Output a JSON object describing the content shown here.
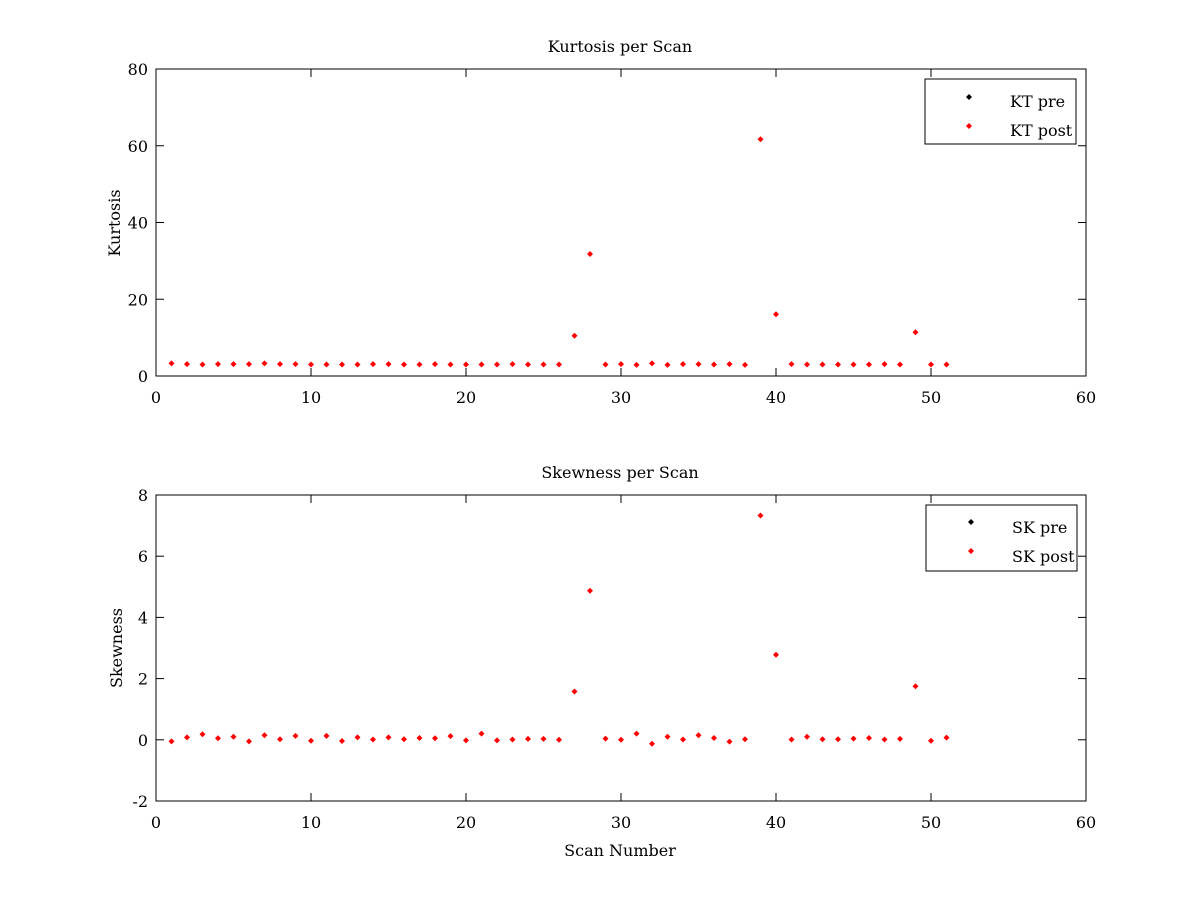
{
  "colors": {
    "pre": "#000000",
    "post": "#ff0000",
    "background": "#ffffff",
    "axes": "#000000"
  },
  "chart_data": [
    {
      "type": "scatter",
      "title": "Kurtosis per Scan",
      "xlabel": "",
      "ylabel": "Kurtosis",
      "xlim": [
        0,
        60
      ],
      "ylim": [
        0,
        80
      ],
      "xticks": [
        0,
        10,
        20,
        30,
        40,
        50,
        60
      ],
      "yticks": [
        0,
        20,
        40,
        60,
        80
      ],
      "grid": false,
      "legend_position": "top-right",
      "series": [
        {
          "name": "KT pre",
          "color": "#000000",
          "x": [],
          "y": []
        },
        {
          "name": "KT post",
          "color": "#ff0000",
          "x": [
            1,
            2,
            3,
            4,
            5,
            6,
            7,
            8,
            9,
            10,
            11,
            12,
            13,
            14,
            15,
            16,
            17,
            18,
            19,
            20,
            21,
            22,
            23,
            24,
            25,
            26,
            27,
            28,
            29,
            30,
            31,
            32,
            33,
            34,
            35,
            36,
            37,
            38,
            39,
            40,
            41,
            42,
            43,
            44,
            45,
            46,
            47,
            48,
            49,
            50,
            51
          ],
          "y": [
            3.3,
            3.1,
            3.0,
            3.1,
            3.1,
            3.1,
            3.3,
            3.1,
            3.1,
            3.0,
            3.0,
            3.0,
            3.0,
            3.1,
            3.1,
            3.0,
            3.0,
            3.1,
            3.0,
            3.0,
            3.0,
            3.0,
            3.1,
            3.0,
            3.0,
            3.0,
            10.5,
            31.8,
            3.0,
            3.1,
            2.9,
            3.3,
            2.9,
            3.1,
            3.1,
            3.0,
            3.1,
            2.9,
            61.7,
            16.1,
            3.1,
            3.0,
            3.0,
            3.0,
            3.0,
            3.0,
            3.1,
            3.0,
            11.4,
            3.0,
            3.0
          ]
        }
      ]
    },
    {
      "type": "scatter",
      "title": "Skewness per Scan",
      "xlabel": "Scan Number",
      "ylabel": "Skewness",
      "xlim": [
        0,
        60
      ],
      "ylim": [
        -2,
        8
      ],
      "xticks": [
        0,
        10,
        20,
        30,
        40,
        50,
        60
      ],
      "yticks": [
        -2,
        0,
        2,
        4,
        6,
        8
      ],
      "grid": false,
      "legend_position": "top-right",
      "series": [
        {
          "name": "SK pre",
          "color": "#000000",
          "x": [],
          "y": []
        },
        {
          "name": "SK post",
          "color": "#ff0000",
          "x": [
            1,
            2,
            3,
            4,
            5,
            6,
            7,
            8,
            9,
            10,
            11,
            12,
            13,
            14,
            15,
            16,
            17,
            18,
            19,
            20,
            21,
            22,
            23,
            24,
            25,
            26,
            27,
            28,
            29,
            30,
            31,
            32,
            33,
            34,
            35,
            36,
            37,
            38,
            39,
            40,
            41,
            42,
            43,
            44,
            45,
            46,
            47,
            48,
            49,
            50,
            51
          ],
          "y": [
            -0.05,
            0.08,
            0.18,
            0.05,
            0.1,
            -0.05,
            0.15,
            0.02,
            0.13,
            -0.03,
            0.13,
            -0.04,
            0.08,
            0.01,
            0.08,
            0.02,
            0.06,
            0.05,
            0.12,
            -0.02,
            0.2,
            -0.02,
            0.01,
            0.03,
            0.03,
            0.0,
            1.58,
            4.87,
            0.04,
            0.0,
            0.2,
            -0.13,
            0.1,
            0.01,
            0.15,
            0.06,
            -0.06,
            0.02,
            7.33,
            2.78,
            0.01,
            0.1,
            0.02,
            0.02,
            0.04,
            0.06,
            0.01,
            0.03,
            1.75,
            -0.03,
            0.07
          ]
        }
      ]
    }
  ]
}
